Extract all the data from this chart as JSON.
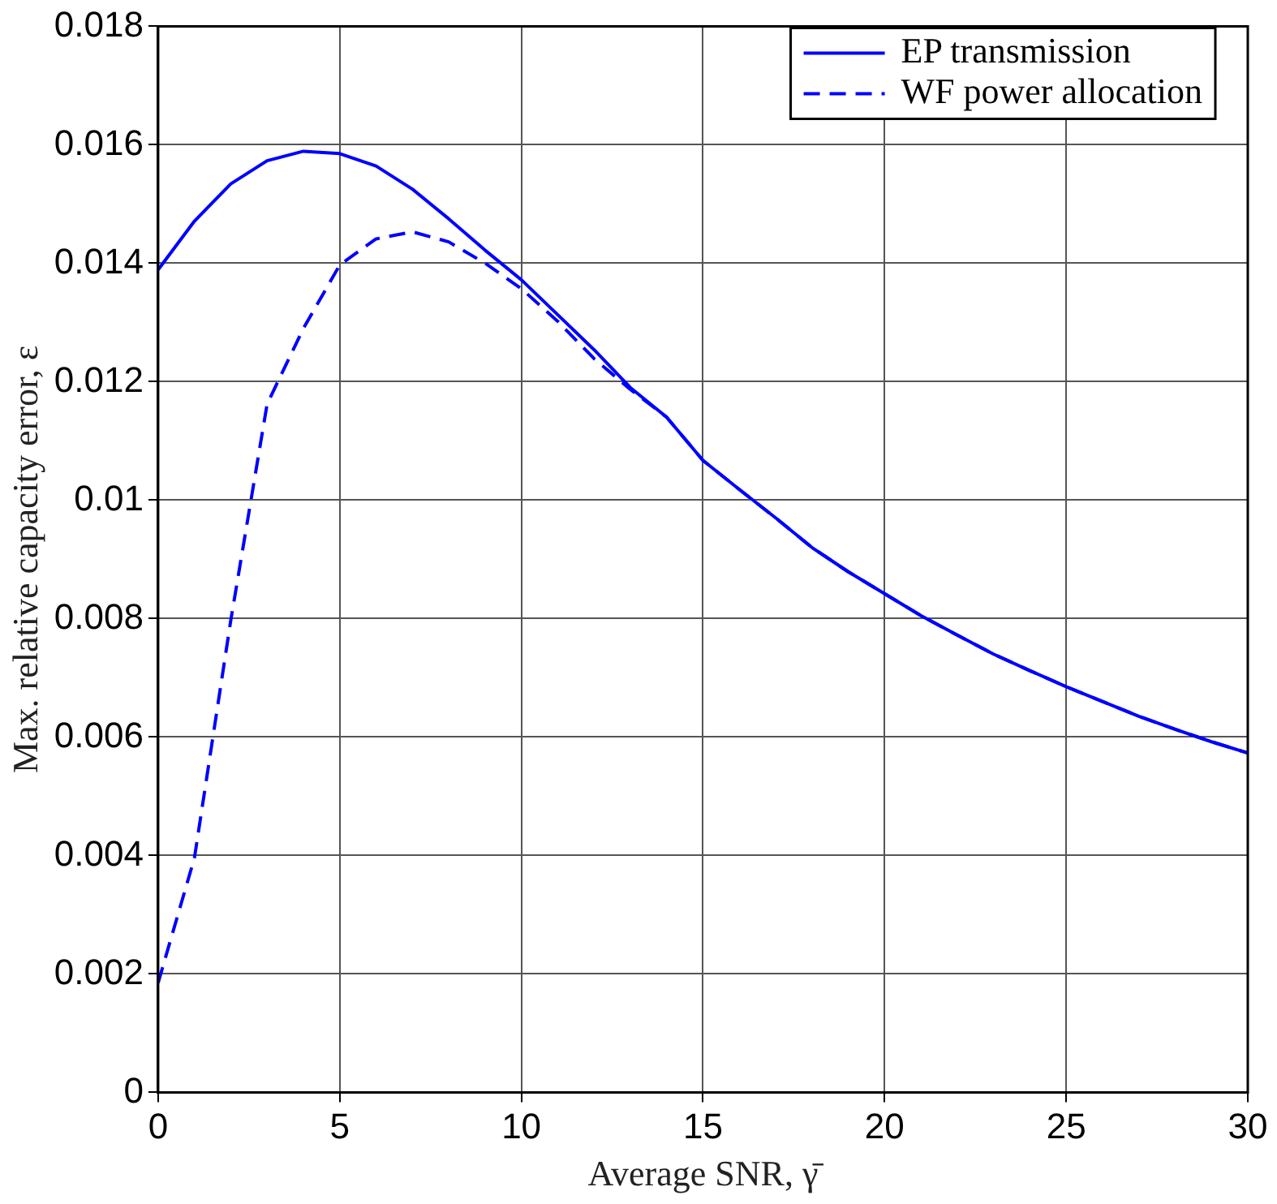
{
  "chart_data": {
    "type": "line",
    "xlabel": "Average SNR, γ̄",
    "ylabel": "Max. relative capacity error, ε",
    "xlim": [
      0,
      30
    ],
    "xticks": [
      0,
      5,
      10,
      15,
      20,
      25,
      30
    ],
    "ylim": [
      0,
      0.018
    ],
    "yticks": [
      0,
      0.002,
      0.004,
      0.006,
      0.008,
      0.01,
      0.012,
      0.014,
      0.016,
      0.018
    ],
    "grid": true,
    "legend": "top right",
    "marker": "none",
    "x": [
      0,
      1,
      2,
      3,
      4,
      5,
      6,
      7,
      8,
      9,
      10,
      11,
      12,
      13,
      14,
      15,
      16,
      17,
      18,
      19,
      20,
      21,
      22,
      23,
      24,
      25,
      26,
      27,
      28,
      29,
      30
    ],
    "series": [
      {
        "name": "EP transmission",
        "color": "#0000ff",
        "line_style": "solid",
        "values": [
          0.01389,
          0.01471,
          0.01534,
          0.01573,
          0.01589,
          0.01585,
          0.01564,
          0.01525,
          0.01475,
          0.01422,
          0.01372,
          0.01313,
          0.01254,
          0.0119,
          0.0114,
          0.01067,
          0.01018,
          0.0097,
          0.0092,
          0.00879,
          0.00842,
          0.00805,
          0.00772,
          0.0074,
          0.00712,
          0.00685,
          0.0066,
          0.00635,
          0.00613,
          0.00592,
          0.00573
        ]
      },
      {
        "name": "WF power allocation",
        "color": "#0000ff",
        "line_style": "dashed",
        "values": [
          0.00185,
          0.00396,
          0.00797,
          0.01162,
          0.0129,
          0.01397,
          0.01441,
          0.01453,
          0.01436,
          0.014,
          0.01357,
          0.01302,
          0.01239,
          0.01187,
          0.0114,
          0.01067,
          0.01018,
          0.0097,
          0.0092,
          0.00879,
          0.00842,
          0.00805,
          0.00772,
          0.0074,
          0.00712,
          0.00685,
          0.0066,
          0.00635,
          0.00613,
          0.00592,
          0.00573
        ]
      }
    ]
  }
}
